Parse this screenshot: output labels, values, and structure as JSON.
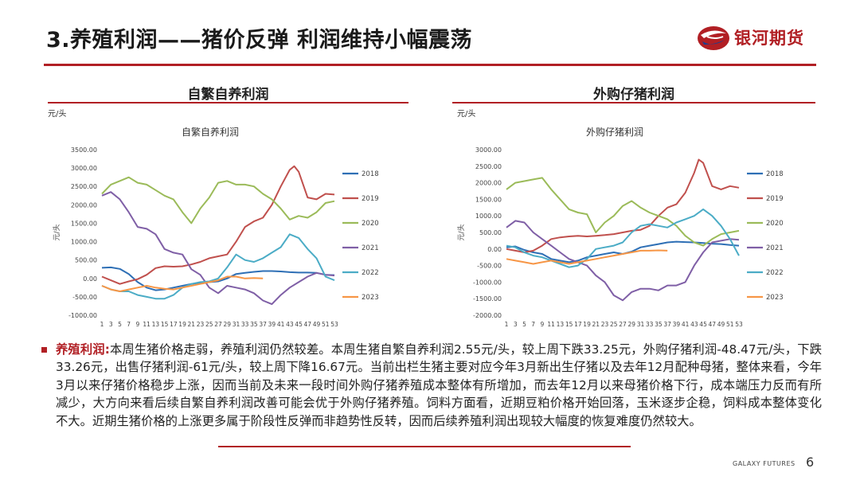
{
  "slide": {
    "title": "3.养殖利润——猪价反弹 利润维持小幅震荡",
    "logo_text": "银河期货",
    "footer": "GALAXY FUTURES",
    "page_number": "6"
  },
  "colors": {
    "brand_red": "#b11f24",
    "2018": "#2e6fb5",
    "2019": "#c0504d",
    "2020": "#9bbb59",
    "2021": "#7f5fa6",
    "2022": "#4bacc6",
    "2023": "#f79646"
  },
  "charts": {
    "left": {
      "header": "自繁自养利润",
      "unit": "元/头",
      "ylabel": "元/头"
    },
    "right": {
      "header": "外购仔猪利润",
      "unit": "元/头",
      "ylabel": "元/头"
    }
  },
  "paragraph": {
    "lead": "养殖利润:",
    "text": "本周生猪价格走弱，养殖利润仍然较差。本周生猪自繁自养利润2.55元/头，较上周下跌33.25元，外购仔猪利润-48.47元/头，下跌33.26元，出售仔猪利润-61元/头，较上周下降16.67元。当前出栏生猪主要对应今年3月新出生仔猪以及去年12月配种母猪，整体来看，今年3月以来仔猪价格稳步上涨，因而当前及未来一段时间外购仔猪养殖成本整体有所增加，而去年12月以来母猪价格下行，成本端压力反而有所减少，大方向来看后续自繁自养利润改善可能会优于外购仔猪养殖。饲料方面看，近期豆粕价格开始回落，玉米逐步企稳，饲料成本整体变化不大。近期生猪价格的上涨更多属于阶段性反弹而非趋势性反转，因而后续养殖利润出现较大幅度的恢复难度仍然较大。"
  },
  "chart_data": [
    {
      "type": "line",
      "title": "自繁自养利润",
      "ylabel": "元/头",
      "xlabel": "",
      "ylim": [
        -1000,
        3500
      ],
      "yticks": [
        "3500.00",
        "3000.00",
        "2500.00",
        "2000.00",
        "1500.00",
        "1000.00",
        "500.00",
        "0.00",
        "-500.00",
        "-1000.00"
      ],
      "xticks": [
        "1",
        "3",
        "5",
        "7",
        "9",
        "11",
        "13",
        "15",
        "17",
        "19",
        "21",
        "23",
        "25",
        "27",
        "29",
        "31",
        "33",
        "35",
        "37",
        "39",
        "41",
        "43",
        "45",
        "47",
        "49",
        "51",
        "53"
      ],
      "legend_position": "right",
      "series": [
        {
          "name": "2018",
          "x": [
            1,
            3,
            5,
            7,
            9,
            11,
            13,
            15,
            17,
            19,
            21,
            23,
            25,
            27,
            29,
            31,
            33,
            35,
            37,
            39,
            41,
            43,
            45,
            47,
            49,
            51,
            53
          ],
          "values": [
            290,
            300,
            260,
            120,
            -100,
            -250,
            -320,
            -300,
            -250,
            -200,
            -150,
            -120,
            -100,
            -80,
            0,
            120,
            150,
            180,
            200,
            200,
            190,
            170,
            160,
            160,
            150,
            100,
            90
          ]
        },
        {
          "name": "2019",
          "x": [
            1,
            3,
            5,
            7,
            9,
            11,
            13,
            15,
            17,
            19,
            21,
            23,
            25,
            27,
            29,
            31,
            33,
            35,
            37,
            39,
            41,
            43,
            44,
            45,
            47,
            49,
            51,
            53
          ],
          "values": [
            50,
            -50,
            -150,
            -80,
            -20,
            100,
            280,
            330,
            320,
            330,
            380,
            450,
            550,
            600,
            650,
            1000,
            1400,
            1550,
            1650,
            2000,
            2500,
            2950,
            3050,
            2900,
            2200,
            2150,
            2300,
            2280
          ]
        },
        {
          "name": "2020",
          "x": [
            1,
            3,
            5,
            7,
            9,
            11,
            13,
            15,
            17,
            19,
            21,
            23,
            25,
            27,
            29,
            31,
            33,
            35,
            37,
            39,
            41,
            43,
            45,
            47,
            49,
            51,
            53
          ],
          "values": [
            2300,
            2550,
            2650,
            2750,
            2600,
            2550,
            2400,
            2250,
            2150,
            1800,
            1500,
            1900,
            2200,
            2600,
            2650,
            2550,
            2550,
            2500,
            2300,
            2150,
            1900,
            1600,
            1700,
            1650,
            1800,
            2050,
            2100
          ]
        },
        {
          "name": "2021",
          "x": [
            1,
            3,
            5,
            7,
            9,
            11,
            13,
            15,
            17,
            19,
            21,
            23,
            25,
            27,
            29,
            31,
            33,
            35,
            37,
            39,
            41,
            43,
            45,
            47,
            49,
            51,
            53
          ],
          "values": [
            2250,
            2350,
            2150,
            1800,
            1400,
            1350,
            1200,
            800,
            700,
            650,
            250,
            100,
            -250,
            -400,
            -200,
            -250,
            -300,
            -400,
            -600,
            -700,
            -450,
            -250,
            -100,
            50,
            150,
            100,
            80
          ]
        },
        {
          "name": "2022",
          "x": [
            1,
            3,
            5,
            7,
            9,
            11,
            13,
            15,
            17,
            19,
            21,
            23,
            25,
            27,
            29,
            31,
            33,
            35,
            37,
            39,
            41,
            43,
            45,
            47,
            49,
            51,
            53
          ],
          "values": [
            -200,
            -300,
            -350,
            -350,
            -450,
            -500,
            -550,
            -550,
            -450,
            -250,
            -150,
            -100,
            -80,
            0,
            300,
            650,
            500,
            450,
            550,
            700,
            850,
            1200,
            1100,
            800,
            550,
            50,
            -50
          ]
        },
        {
          "name": "2023",
          "x": [
            1,
            3,
            5,
            7,
            9,
            11,
            13,
            15,
            17,
            19,
            21,
            23,
            25,
            27,
            29,
            31,
            33,
            35,
            37
          ],
          "values": [
            -200,
            -300,
            -350,
            -300,
            -250,
            -200,
            -250,
            -280,
            -300,
            -250,
            -200,
            -150,
            -100,
            -50,
            50,
            50,
            0,
            10,
            0
          ]
        }
      ]
    },
    {
      "type": "line",
      "title": "外购仔猪利润",
      "ylabel": "元/头",
      "xlabel": "",
      "ylim": [
        -2000,
        3000
      ],
      "yticks": [
        "3000.00",
        "2500.00",
        "2000.00",
        "1500.00",
        "1000.00",
        "500.00",
        "0.00",
        "-500.00",
        "-1000.00",
        "-1500.00",
        "-2000.00"
      ],
      "xticks": [
        "1",
        "3",
        "5",
        "7",
        "9",
        "11",
        "13",
        "15",
        "17",
        "19",
        "21",
        "23",
        "25",
        "27",
        "29",
        "31",
        "33",
        "35",
        "37",
        "39",
        "41",
        "43",
        "45",
        "47",
        "49",
        "51",
        "53"
      ],
      "legend_position": "right",
      "series": [
        {
          "name": "2018",
          "x": [
            1,
            3,
            5,
            7,
            9,
            11,
            13,
            15,
            17,
            19,
            21,
            23,
            25,
            27,
            29,
            31,
            33,
            35,
            37,
            39,
            41,
            43,
            45,
            47,
            49,
            51,
            53
          ],
          "values": [
            50,
            80,
            -30,
            -100,
            -150,
            -300,
            -350,
            -400,
            -350,
            -250,
            -200,
            -150,
            -100,
            -150,
            -80,
            50,
            100,
            150,
            200,
            220,
            210,
            200,
            180,
            160,
            150,
            120,
            100
          ]
        },
        {
          "name": "2019",
          "x": [
            1,
            3,
            5,
            7,
            9,
            11,
            13,
            15,
            17,
            19,
            21,
            23,
            25,
            27,
            29,
            31,
            33,
            35,
            37,
            39,
            41,
            43,
            44,
            45,
            47,
            49,
            51,
            53
          ],
          "values": [
            0,
            -50,
            -100,
            -50,
            100,
            300,
            350,
            380,
            400,
            380,
            400,
            420,
            450,
            500,
            550,
            580,
            700,
            1000,
            1250,
            1350,
            1700,
            2300,
            2700,
            2600,
            1900,
            1800,
            1900,
            1850
          ]
        },
        {
          "name": "2020",
          "x": [
            1,
            3,
            5,
            7,
            9,
            11,
            13,
            15,
            17,
            19,
            21,
            23,
            25,
            27,
            29,
            31,
            33,
            35,
            37,
            39,
            41,
            43,
            45,
            47,
            49,
            51,
            53
          ],
          "values": [
            1800,
            2000,
            2050,
            2100,
            2150,
            1800,
            1500,
            1200,
            1100,
            1050,
            500,
            800,
            1000,
            1300,
            1450,
            1250,
            1100,
            1000,
            900,
            700,
            400,
            200,
            100,
            300,
            450,
            500,
            550
          ]
        },
        {
          "name": "2021",
          "x": [
            1,
            3,
            5,
            7,
            9,
            11,
            13,
            15,
            17,
            19,
            21,
            23,
            25,
            27,
            29,
            31,
            33,
            35,
            37,
            39,
            41,
            43,
            45,
            47,
            49,
            51,
            53
          ],
          "values": [
            650,
            850,
            800,
            500,
            300,
            100,
            -100,
            -300,
            -400,
            -500,
            -800,
            -1000,
            -1400,
            -1550,
            -1300,
            -1200,
            -1200,
            -1250,
            -1100,
            -1100,
            -1000,
            -500,
            -100,
            200,
            250,
            300,
            280
          ]
        },
        {
          "name": "2022",
          "x": [
            1,
            3,
            5,
            7,
            9,
            11,
            13,
            15,
            17,
            19,
            21,
            23,
            25,
            27,
            29,
            31,
            33,
            35,
            37,
            39,
            41,
            43,
            45,
            47,
            49,
            51,
            53
          ],
          "values": [
            100,
            50,
            -100,
            -200,
            -250,
            -350,
            -450,
            -550,
            -500,
            -300,
            0,
            50,
            100,
            200,
            500,
            700,
            750,
            700,
            650,
            800,
            900,
            1000,
            1200,
            1000,
            700,
            300,
            -200
          ]
        },
        {
          "name": "2023",
          "x": [
            1,
            3,
            5,
            7,
            9,
            11,
            13,
            15,
            17,
            19,
            21,
            23,
            25,
            27,
            29,
            31,
            33,
            35,
            37
          ],
          "values": [
            -300,
            -350,
            -400,
            -450,
            -400,
            -350,
            -400,
            -450,
            -400,
            -350,
            -300,
            -250,
            -200,
            -150,
            -100,
            -50,
            -50,
            -40,
            -50
          ]
        }
      ]
    }
  ]
}
